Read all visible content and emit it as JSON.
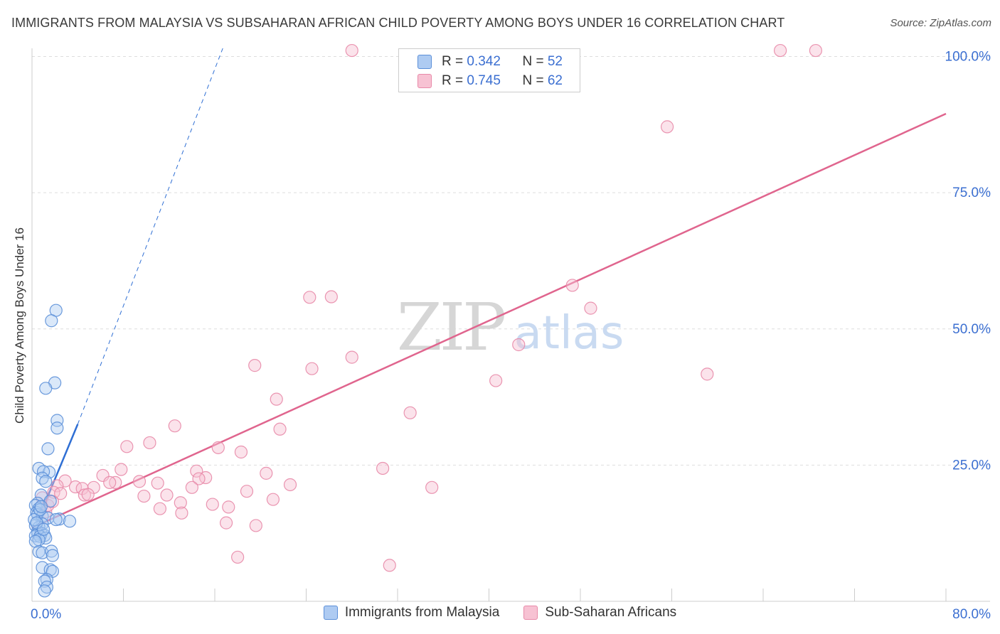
{
  "title": "IMMIGRANTS FROM MALAYSIA VS SUBSAHARAN AFRICAN CHILD POVERTY AMONG BOYS UNDER 16 CORRELATION CHART",
  "source": "Source: ZipAtlas.com",
  "watermark": {
    "zip": "ZIP",
    "atlas": "atlas"
  },
  "colors": {
    "blue": "#5b8fd8",
    "blue_fill": "#aecbf2",
    "blue_line": "#2f6fd4",
    "pink": "#e889a8",
    "pink_fill": "#f7c2d3",
    "pink_line": "#e0658e",
    "axis_text": "#3b6fd1",
    "grid": "#dddddd"
  },
  "stats": [
    {
      "r_label": "R = ",
      "r_value": "0.342",
      "n_label": "N = ",
      "n_value": "52",
      "series": "blue"
    },
    {
      "r_label": "R = ",
      "r_value": "0.745",
      "n_label": "N = ",
      "n_value": "62",
      "series": "pink"
    }
  ],
  "legend": [
    {
      "label": "Immigrants from Malaysia",
      "series": "blue"
    },
    {
      "label": "Sub-Saharan Africans",
      "series": "pink"
    }
  ],
  "chart_data": {
    "type": "scatter",
    "title": "IMMIGRANTS FROM MALAYSIA VS SUBSAHARAN AFRICAN CHILD POVERTY AMONG BOYS UNDER 16 CORRELATION CHART",
    "xlabel": "",
    "ylabel": "Child Poverty Among Boys Under 16",
    "xlim": [
      0,
      80
    ],
    "ylim": [
      0,
      102
    ],
    "x_tick_labels": [
      {
        "value": 0,
        "label": "0.0%"
      },
      {
        "value": 80,
        "label": "80.0%"
      }
    ],
    "y_tick_labels": [
      {
        "value": 25,
        "label": "25.0%"
      },
      {
        "value": 50,
        "label": "50.0%"
      },
      {
        "value": 75,
        "label": "75.0%"
      },
      {
        "value": 100,
        "label": "100.0%"
      }
    ],
    "grid": true,
    "series": [
      {
        "name": "Immigrants from Malaysia",
        "color": "blue",
        "points": [
          [
            2.1,
            53.4
          ],
          [
            1.7,
            51.5
          ],
          [
            2.0,
            40.1
          ],
          [
            1.2,
            39.1
          ],
          [
            2.2,
            33.2
          ],
          [
            2.2,
            31.8
          ],
          [
            1.4,
            28.0
          ],
          [
            0.6,
            24.4
          ],
          [
            1.5,
            23.7
          ],
          [
            1.0,
            23.8
          ],
          [
            0.9,
            22.6
          ],
          [
            1.2,
            22.0
          ],
          [
            0.8,
            19.5
          ],
          [
            1.6,
            18.4
          ],
          [
            0.5,
            18.0
          ],
          [
            0.3,
            17.6
          ],
          [
            0.6,
            17.0
          ],
          [
            0.4,
            16.3
          ],
          [
            0.5,
            15.9
          ],
          [
            0.9,
            15.6
          ],
          [
            1.4,
            15.3
          ],
          [
            2.4,
            15.1
          ],
          [
            2.1,
            15.0
          ],
          [
            3.3,
            14.7
          ],
          [
            0.9,
            14.2
          ],
          [
            0.3,
            13.9
          ],
          [
            0.6,
            13.6
          ],
          [
            0.5,
            12.8
          ],
          [
            0.5,
            12.4
          ],
          [
            0.8,
            12.5
          ],
          [
            0.3,
            12.0
          ],
          [
            1.1,
            12.1
          ],
          [
            0.7,
            11.9
          ],
          [
            1.2,
            11.6
          ],
          [
            0.6,
            11.3
          ],
          [
            0.3,
            11.0
          ],
          [
            0.6,
            9.1
          ],
          [
            0.9,
            8.9
          ],
          [
            1.7,
            9.2
          ],
          [
            1.8,
            8.4
          ],
          [
            0.9,
            6.2
          ],
          [
            1.6,
            5.8
          ],
          [
            1.8,
            5.5
          ],
          [
            1.3,
            4.0
          ],
          [
            1.1,
            3.7
          ],
          [
            1.3,
            2.6
          ],
          [
            1.1,
            1.9
          ],
          [
            0.2,
            15.0
          ],
          [
            0.7,
            16.8
          ],
          [
            0.4,
            14.4
          ],
          [
            1.0,
            13.2
          ],
          [
            0.8,
            17.4
          ]
        ]
      },
      {
        "name": "Sub-Saharan Africans",
        "color": "pink",
        "points": [
          [
            28.0,
            101.1
          ],
          [
            65.5,
            101.1
          ],
          [
            68.6,
            101.1
          ],
          [
            55.6,
            87.1
          ],
          [
            47.3,
            58.0
          ],
          [
            48.9,
            53.8
          ],
          [
            24.3,
            55.8
          ],
          [
            26.2,
            55.9
          ],
          [
            42.6,
            47.1
          ],
          [
            28.0,
            44.8
          ],
          [
            19.5,
            43.3
          ],
          [
            24.5,
            42.7
          ],
          [
            59.1,
            41.7
          ],
          [
            40.6,
            40.5
          ],
          [
            21.4,
            37.1
          ],
          [
            33.1,
            34.6
          ],
          [
            12.5,
            32.2
          ],
          [
            21.7,
            31.6
          ],
          [
            10.3,
            29.1
          ],
          [
            8.3,
            28.4
          ],
          [
            16.3,
            28.2
          ],
          [
            18.3,
            27.4
          ],
          [
            30.7,
            24.4
          ],
          [
            7.8,
            24.2
          ],
          [
            14.4,
            23.9
          ],
          [
            20.5,
            23.5
          ],
          [
            6.2,
            23.1
          ],
          [
            15.2,
            22.7
          ],
          [
            14.6,
            22.5
          ],
          [
            2.9,
            22.1
          ],
          [
            9.4,
            22.0
          ],
          [
            7.3,
            21.8
          ],
          [
            11.0,
            21.7
          ],
          [
            6.8,
            21.8
          ],
          [
            22.6,
            21.4
          ],
          [
            2.2,
            21.2
          ],
          [
            5.4,
            20.9
          ],
          [
            14.0,
            20.9
          ],
          [
            35.0,
            20.9
          ],
          [
            3.8,
            21.0
          ],
          [
            4.4,
            20.7
          ],
          [
            18.8,
            20.2
          ],
          [
            1.9,
            20.0
          ],
          [
            2.5,
            19.8
          ],
          [
            4.6,
            19.5
          ],
          [
            11.8,
            19.5
          ],
          [
            4.9,
            19.6
          ],
          [
            9.8,
            19.3
          ],
          [
            21.1,
            18.7
          ],
          [
            13.0,
            18.1
          ],
          [
            15.8,
            17.8
          ],
          [
            11.2,
            17.0
          ],
          [
            17.2,
            17.3
          ],
          [
            13.1,
            16.2
          ],
          [
            1.2,
            16.4
          ],
          [
            0.9,
            19.0
          ],
          [
            1.4,
            17.6
          ],
          [
            17.0,
            14.4
          ],
          [
            19.6,
            13.9
          ],
          [
            18.0,
            8.1
          ],
          [
            31.3,
            6.6
          ],
          [
            1.8,
            18.3
          ]
        ]
      }
    ],
    "trend_lines": [
      {
        "series": "Immigrants from Malaysia",
        "x": [
          0.4,
          4.0
        ],
        "y": [
          14.3,
          32.5
        ],
        "dashed_extension_to": [
          16.7,
          101.5
        ]
      },
      {
        "series": "Sub-Saharan Africans",
        "x": [
          0.0,
          80.0
        ],
        "y": [
          13.5,
          89.5
        ]
      }
    ]
  }
}
